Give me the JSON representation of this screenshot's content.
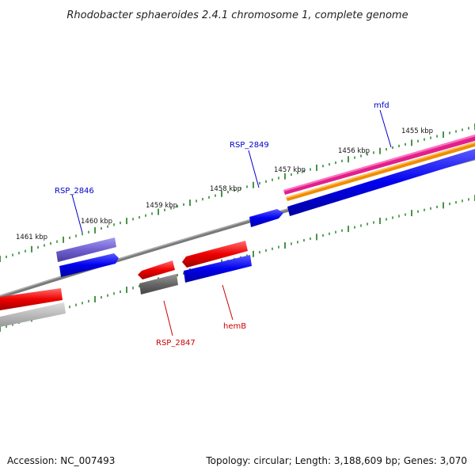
{
  "title": "Rhodobacter sphaeroides 2.4.1 chromosome 1, complete genome",
  "footer": {
    "accession": "Accession: NC_007493",
    "topology": "Topology: circular; Length: 3,188,609 bp; Genes: 3,070"
  },
  "kbp_labels": [
    "1455 kbp",
    "1456 kbp",
    "1457 kbp",
    "1458 kbp",
    "1459 kbp",
    "1460 kbp",
    "1461 kbp"
  ],
  "gene_labels": [
    {
      "id": "mfd",
      "text": "mfd",
      "color": "#0000cc"
    },
    {
      "id": "rsp2849",
      "text": "RSP_2849",
      "color": "#0000cc"
    },
    {
      "id": "rsp2846",
      "text": "RSP_2846",
      "color": "#0000cc"
    },
    {
      "id": "rsp2847",
      "text": "RSP_2847",
      "color": "#cc0000"
    },
    {
      "id": "hemb",
      "text": "hemB",
      "color": "#cc0000"
    }
  ],
  "colors": {
    "backbone": "#888888",
    "tick": "#1a7a1a",
    "gene_blue": "#0000ee",
    "gene_red": "#ee0000",
    "gene_gray": "#666666",
    "gene_purple": "#7060d0",
    "gene_magenta": "#e0208a",
    "gene_orange": "#f08c00",
    "gene_lightgray": "#bbbbbb",
    "leader_blue": "#0000cc",
    "leader_red": "#cc0000"
  }
}
